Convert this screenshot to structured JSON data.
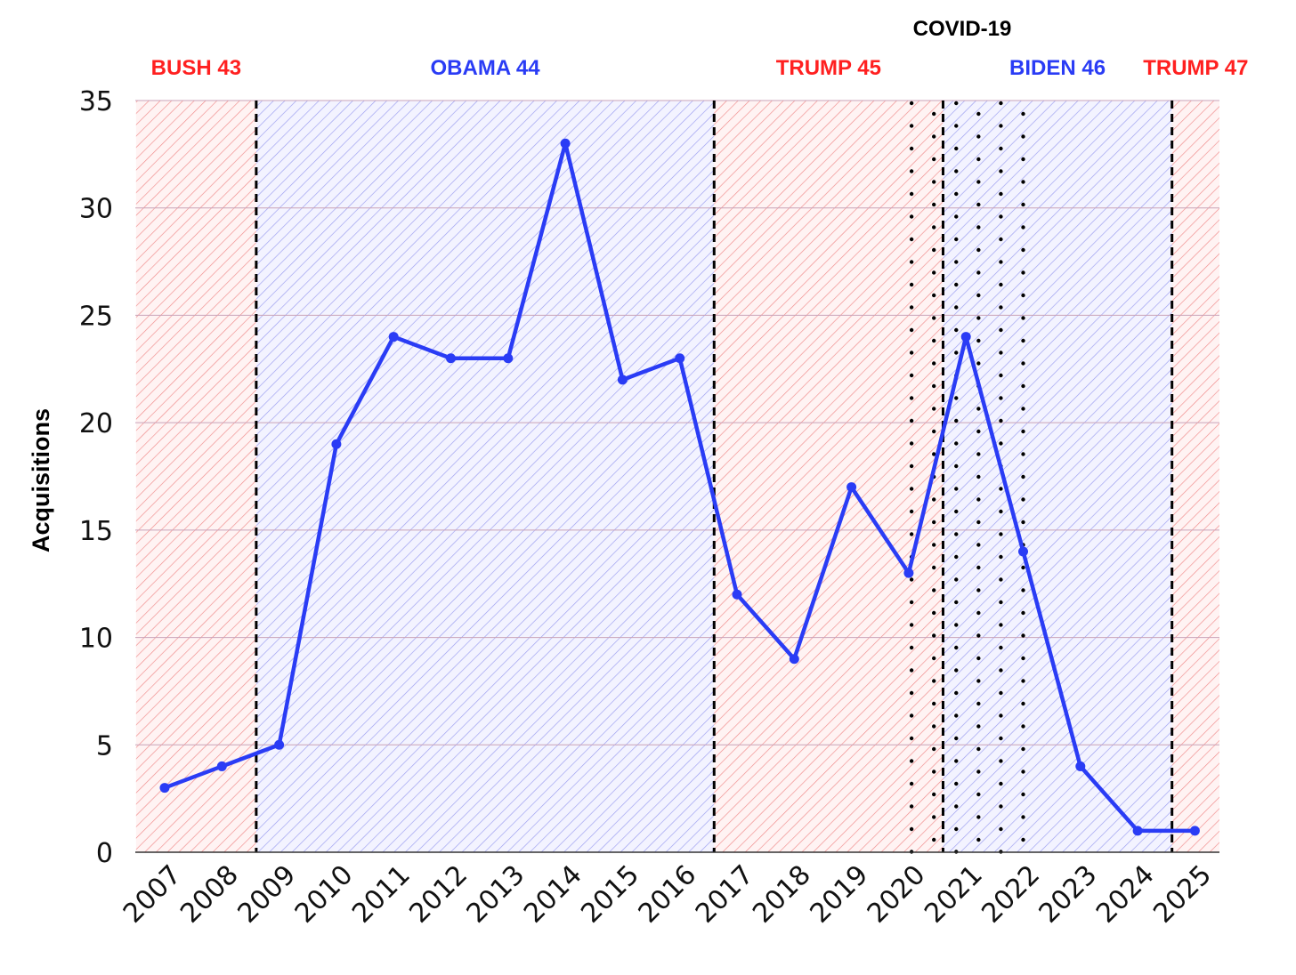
{
  "chart_data": {
    "type": "line",
    "title": "",
    "xlabel": "",
    "ylabel": "Acquisitions",
    "ylim": [
      0,
      35
    ],
    "yticks": [
      "0",
      "5",
      "10",
      "15",
      "20",
      "25",
      "30",
      "35"
    ],
    "grid": true,
    "line_color": "#2a3cf5",
    "x": [
      "2007",
      "2008",
      "2009",
      "2010",
      "2011",
      "2012",
      "2013",
      "2014",
      "2015",
      "2016",
      "2017",
      "2018",
      "2019",
      "2020",
      "2021",
      "2022",
      "2023",
      "2024",
      "2025"
    ],
    "series": [
      {
        "values": [
          3,
          4,
          5,
          19,
          24,
          23,
          23,
          33,
          22,
          23,
          12,
          9,
          17,
          13,
          24,
          14,
          4,
          1,
          1
        ]
      }
    ],
    "eras": [
      {
        "label": "BUSH 43",
        "start": 2006.5,
        "end": 2008.6,
        "party_color": "#ff2020"
      },
      {
        "label": "OBAMA 44",
        "start": 2008.6,
        "end": 2016.6,
        "party_color": "#2a3cf5"
      },
      {
        "label": "TRUMP 45",
        "start": 2016.6,
        "end": 2020.6,
        "party_color": "#ff2020"
      },
      {
        "label": "BIDEN 46",
        "start": 2020.6,
        "end": 2024.6,
        "party_color": "#2a3cf5"
      },
      {
        "label": "TRUMP 47",
        "start": 2024.6,
        "end": 2025.5,
        "party_color": "#ff2020"
      }
    ],
    "term_boundaries": [
      2008.6,
      2016.6,
      2020.6,
      2024.6
    ],
    "covid": {
      "label": "COVID-19",
      "start": 2020.05,
      "end": 2022.0
    }
  }
}
